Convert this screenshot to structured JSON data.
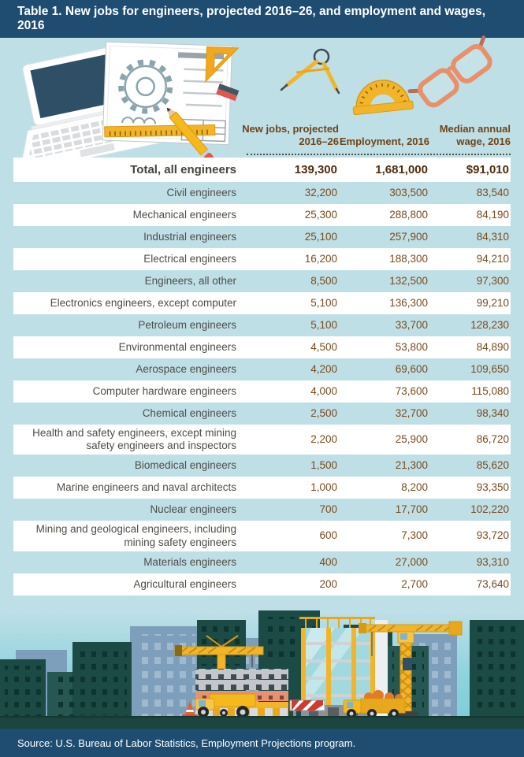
{
  "title": "Table 1. New jobs for engineers, projected 2016–26, and employment and wages, 2016",
  "footer": {
    "source": "Source: U.S. Bureau of Labor Statistics, Employment Projections program."
  },
  "colors": {
    "navy_bar": "#1f4d71",
    "page_background": "#bfdfe7",
    "header_text_brown": "#6f4417",
    "number_text_brown": "#7b4a1e",
    "label_text_gray": "#4f4d47",
    "row_white": "#ffffff",
    "accent_yellow": "#f2b52a",
    "glasses_salmon": "#e8906b",
    "skyline_teal_building": "#1c4a45",
    "skyline_far_building": "#7e9fbb",
    "sky_turquoise": "#7bccd8"
  },
  "art": {
    "icons": [
      "laptop-icon",
      "blueprint-icon",
      "drafting-compass-icon",
      "protractor-icon",
      "glasses-icon",
      "construction-skyline-illustration"
    ]
  },
  "chart_data": {
    "type": "table",
    "title": "Table 1. New jobs for engineers, projected 2016–26, and employment and wages, 2016",
    "columns": [
      "New jobs, projected 2016–26",
      "Employment, 2016",
      "Median annual wage, 2016"
    ],
    "rows": [
      {
        "label": "Total, all engineers",
        "new_jobs": "139,300",
        "employment": "1,681,000",
        "wage": "$91,010",
        "emphasis": true
      },
      {
        "label": "Civil engineers",
        "new_jobs": "32,200",
        "employment": "303,500",
        "wage": "83,540"
      },
      {
        "label": "Mechanical engineers",
        "new_jobs": "25,300",
        "employment": "288,800",
        "wage": "84,190"
      },
      {
        "label": "Industrial engineers",
        "new_jobs": "25,100",
        "employment": "257,900",
        "wage": "84,310"
      },
      {
        "label": "Electrical engineers",
        "new_jobs": "16,200",
        "employment": "188,300",
        "wage": "94,210"
      },
      {
        "label": "Engineers, all other",
        "new_jobs": "8,500",
        "employment": "132,500",
        "wage": "97,300"
      },
      {
        "label": "Electronics engineers, except computer",
        "new_jobs": "5,100",
        "employment": "136,300",
        "wage": "99,210"
      },
      {
        "label": "Petroleum engineers",
        "new_jobs": "5,100",
        "employment": "33,700",
        "wage": "128,230"
      },
      {
        "label": "Environmental engineers",
        "new_jobs": "4,500",
        "employment": "53,800",
        "wage": "84,890"
      },
      {
        "label": "Aerospace engineers",
        "new_jobs": "4,200",
        "employment": "69,600",
        "wage": "109,650"
      },
      {
        "label": "Computer hardware engineers",
        "new_jobs": "4,000",
        "employment": "73,600",
        "wage": "115,080"
      },
      {
        "label": "Chemical engineers",
        "new_jobs": "2,500",
        "employment": "32,700",
        "wage": "98,340"
      },
      {
        "label": "Health and safety engineers, except mining safety engineers and inspectors",
        "new_jobs": "2,200",
        "employment": "25,900",
        "wage": "86,720"
      },
      {
        "label": "Biomedical engineers",
        "new_jobs": "1,500",
        "employment": "21,300",
        "wage": "85,620"
      },
      {
        "label": "Marine engineers and naval architects",
        "new_jobs": "1,000",
        "employment": "8,200",
        "wage": "93,350"
      },
      {
        "label": "Nuclear engineers",
        "new_jobs": "700",
        "employment": "17,700",
        "wage": "102,220"
      },
      {
        "label": "Mining and geological engineers, including mining safety engineers",
        "new_jobs": "600",
        "employment": "7,300",
        "wage": "93,720"
      },
      {
        "label": "Materials engineers",
        "new_jobs": "400",
        "employment": "27,000",
        "wage": "93,310"
      },
      {
        "label": "Agricultural engineers",
        "new_jobs": "200",
        "employment": "2,700",
        "wage": "73,640"
      }
    ]
  }
}
